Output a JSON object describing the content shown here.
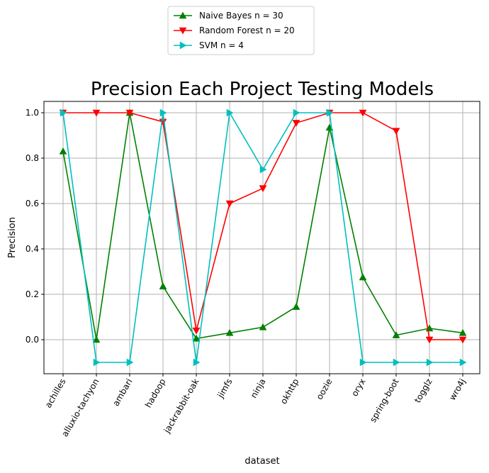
{
  "chart_data": {
    "type": "line",
    "title": "Precision Each Project Testing Models",
    "xlabel": "dataset",
    "ylabel": "Precision",
    "categories": [
      "achilles",
      "alluxio-tachyon",
      "ambari",
      "hadoop",
      "jackrabbit-oak",
      "jimfs",
      "ninja",
      "okhttp",
      "oozie",
      "oryx",
      "spring-boot",
      "togglz",
      "wro4j"
    ],
    "ylim": [
      -0.15,
      1.05
    ],
    "yticks": [
      "0.0",
      "0.2",
      "0.4",
      "0.6",
      "0.8",
      "1.0"
    ],
    "grid": true,
    "legend_position": "top-center, above plot",
    "series": [
      {
        "name": "Naive Bayes n = 30",
        "color": "#008000",
        "marker": "triangle-up",
        "values": [
          0.83,
          0.0,
          1.0,
          0.235,
          0.005,
          0.03,
          0.055,
          0.145,
          0.935,
          0.275,
          0.02,
          0.05,
          0.03
        ]
      },
      {
        "name": "Random Forest n = 20",
        "color": "#ff0000",
        "marker": "triangle-down",
        "values": [
          1.0,
          1.0,
          1.0,
          0.96,
          0.04,
          0.6,
          0.667,
          0.955,
          1.0,
          1.0,
          0.92,
          0.0,
          0.0
        ]
      },
      {
        "name": "SVM n = 4",
        "color": "#00bfbf",
        "marker": "triangle-right",
        "values": [
          1.0,
          -0.1,
          -0.1,
          1.0,
          -0.1,
          1.0,
          0.75,
          1.0,
          1.0,
          -0.1,
          -0.1,
          -0.1,
          -0.1
        ]
      }
    ]
  }
}
